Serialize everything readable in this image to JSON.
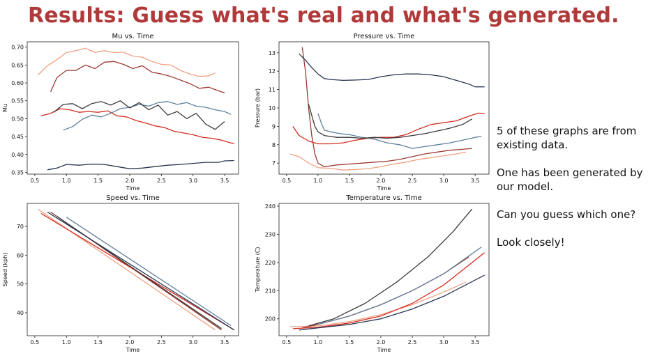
{
  "title": "Results: Guess what's real and what's generated.",
  "side_text": [
    "5 of these graphs are from existing data.",
    "One has been generated by our model.",
    "Can you guess which one?",
    "Look closely!"
  ],
  "series_colors": [
    "#f0a080",
    "#9b3a32",
    "#d42a1e",
    "#5f7f9a",
    "#3a3a3a",
    "#2a3550"
  ],
  "chart_data": [
    {
      "type": "line",
      "title": "Mu vs. Time",
      "xlabel": "Time",
      "ylabel": "Mu",
      "xlim": [
        0.38,
        3.72
      ],
      "ylim": [
        0.345,
        0.715
      ],
      "xticks": [
        0.5,
        1.0,
        1.5,
        2.0,
        2.5,
        3.0,
        3.5
      ],
      "yticks": [
        0.35,
        0.4,
        0.45,
        0.5,
        0.55,
        0.6,
        0.65,
        0.7
      ],
      "tick_format": 2,
      "series": [
        {
          "color": "#f0a080",
          "x": [
            0.55,
            0.7,
            0.85,
            1.0,
            1.15,
            1.3,
            1.45,
            1.6,
            1.75,
            1.9,
            2.05,
            2.2,
            2.35,
            2.5,
            2.65,
            2.8,
            2.95,
            3.1,
            3.25,
            3.35
          ],
          "y": [
            0.622,
            0.648,
            0.665,
            0.685,
            0.69,
            0.697,
            0.685,
            0.69,
            0.685,
            0.686,
            0.675,
            0.672,
            0.66,
            0.652,
            0.65,
            0.635,
            0.625,
            0.618,
            0.62,
            0.628
          ]
        },
        {
          "color": "#9b3a32",
          "x": [
            0.75,
            0.85,
            1.0,
            1.15,
            1.3,
            1.45,
            1.6,
            1.75,
            1.9,
            2.05,
            2.2,
            2.35,
            2.5,
            2.65,
            2.8,
            2.95,
            3.1,
            3.25,
            3.4,
            3.5
          ],
          "y": [
            0.575,
            0.615,
            0.635,
            0.635,
            0.65,
            0.64,
            0.658,
            0.66,
            0.652,
            0.64,
            0.648,
            0.63,
            0.625,
            0.618,
            0.608,
            0.598,
            0.585,
            0.588,
            0.578,
            0.572
          ]
        },
        {
          "color": "#d42a1e",
          "x": [
            0.6,
            0.75,
            0.9,
            1.05,
            1.2,
            1.35,
            1.5,
            1.65,
            1.8,
            1.95,
            2.1,
            2.25,
            2.4,
            2.55,
            2.7,
            2.85,
            3.0,
            3.15,
            3.3,
            3.45,
            3.6,
            3.65
          ],
          "y": [
            0.508,
            0.515,
            0.528,
            0.525,
            0.518,
            0.52,
            0.518,
            0.522,
            0.508,
            0.505,
            0.495,
            0.488,
            0.48,
            0.475,
            0.465,
            0.46,
            0.455,
            0.448,
            0.445,
            0.44,
            0.432,
            0.43
          ]
        },
        {
          "color": "#5f7f9a",
          "x": [
            0.95,
            1.1,
            1.25,
            1.4,
            1.55,
            1.7,
            1.85,
            2.0,
            2.15,
            2.3,
            2.45,
            2.6,
            2.75,
            2.9,
            3.05,
            3.2,
            3.35,
            3.5,
            3.6
          ],
          "y": [
            0.468,
            0.478,
            0.498,
            0.51,
            0.505,
            0.515,
            0.528,
            0.532,
            0.54,
            0.535,
            0.545,
            0.548,
            0.54,
            0.545,
            0.535,
            0.532,
            0.525,
            0.52,
            0.512
          ]
        },
        {
          "color": "#3a3a3a",
          "x": [
            0.8,
            0.95,
            1.1,
            1.25,
            1.4,
            1.55,
            1.7,
            1.85,
            2.0,
            2.15,
            2.3,
            2.45,
            2.6,
            2.75,
            2.9,
            3.05,
            3.2,
            3.35,
            3.5
          ],
          "y": [
            0.518,
            0.54,
            0.542,
            0.528,
            0.542,
            0.548,
            0.538,
            0.55,
            0.53,
            0.545,
            0.525,
            0.538,
            0.51,
            0.52,
            0.5,
            0.515,
            0.485,
            0.47,
            0.492
          ]
        },
        {
          "color": "#2a3550",
          "x": [
            0.7,
            0.85,
            1.0,
            1.2,
            1.4,
            1.6,
            1.8,
            2.0,
            2.2,
            2.4,
            2.6,
            2.8,
            3.0,
            3.2,
            3.4,
            3.5,
            3.65
          ],
          "y": [
            0.357,
            0.362,
            0.372,
            0.37,
            0.373,
            0.372,
            0.366,
            0.36,
            0.362,
            0.366,
            0.37,
            0.372,
            0.375,
            0.378,
            0.378,
            0.382,
            0.383
          ]
        }
      ]
    },
    {
      "type": "line",
      "title": "Pressure vs. Time",
      "xlabel": "Time",
      "ylabel": "Pressure (bar)",
      "xlim": [
        0.38,
        3.72
      ],
      "ylim": [
        6.4,
        13.6
      ],
      "xticks": [
        0.5,
        1.0,
        1.5,
        2.0,
        2.5,
        3.0,
        3.5
      ],
      "yticks": [
        7,
        8,
        9,
        10,
        11,
        12,
        13
      ],
      "tick_format": 0,
      "series": [
        {
          "color": "#f0a080",
          "x": [
            0.55,
            0.7,
            0.85,
            1.0,
            1.2,
            1.4,
            1.6,
            1.8,
            2.0,
            2.2,
            2.4,
            2.6,
            2.8,
            3.0,
            3.2,
            3.35
          ],
          "y": [
            7.5,
            7.35,
            7.0,
            6.75,
            6.72,
            6.62,
            6.65,
            6.7,
            6.8,
            6.95,
            7.05,
            7.2,
            7.3,
            7.4,
            7.5,
            7.6
          ]
        },
        {
          "color": "#9b3a32",
          "x": [
            0.75,
            0.8,
            0.85,
            0.9,
            0.95,
            1.0,
            1.1,
            1.3,
            1.5,
            1.7,
            1.9,
            2.1,
            2.3,
            2.5,
            2.7,
            2.9,
            3.1,
            3.3,
            3.45
          ],
          "y": [
            13.3,
            12.0,
            10.0,
            8.5,
            7.5,
            7.0,
            6.8,
            6.9,
            6.95,
            7.0,
            7.05,
            7.1,
            7.2,
            7.35,
            7.5,
            7.6,
            7.7,
            7.75,
            7.8
          ]
        },
        {
          "color": "#d42a1e",
          "x": [
            0.6,
            0.7,
            0.85,
            1.0,
            1.2,
            1.4,
            1.6,
            1.8,
            2.0,
            2.2,
            2.4,
            2.6,
            2.8,
            3.0,
            3.2,
            3.4,
            3.55,
            3.65
          ],
          "y": [
            9.0,
            8.5,
            8.2,
            8.05,
            8.05,
            8.1,
            8.25,
            8.35,
            8.4,
            8.4,
            8.55,
            8.85,
            9.1,
            9.2,
            9.3,
            9.55,
            9.72,
            9.7
          ]
        },
        {
          "color": "#5f7f9a",
          "x": [
            1.0,
            1.05,
            1.1,
            1.2,
            1.35,
            1.5,
            1.7,
            1.9,
            2.1,
            2.3,
            2.5,
            2.7,
            2.9,
            3.1,
            3.3,
            3.5,
            3.6
          ],
          "y": [
            9.7,
            9.2,
            8.8,
            8.7,
            8.6,
            8.55,
            8.4,
            8.3,
            8.1,
            8.0,
            7.8,
            7.9,
            8.0,
            8.1,
            8.25,
            8.4,
            8.45
          ]
        },
        {
          "color": "#3a3a3a",
          "x": [
            0.85,
            0.9,
            0.95,
            1.0,
            1.1,
            1.3,
            1.5,
            1.7,
            1.9,
            2.1,
            2.3,
            2.5,
            2.7,
            2.9,
            3.1,
            3.3,
            3.45
          ],
          "y": [
            10.2,
            9.6,
            9.0,
            8.7,
            8.5,
            8.4,
            8.4,
            8.35,
            8.4,
            8.35,
            8.4,
            8.5,
            8.6,
            8.75,
            8.9,
            9.1,
            9.4
          ]
        },
        {
          "color": "#2a3550",
          "x": [
            0.7,
            0.8,
            0.9,
            1.0,
            1.1,
            1.2,
            1.4,
            1.6,
            1.8,
            2.0,
            2.2,
            2.4,
            2.6,
            2.8,
            3.0,
            3.2,
            3.4,
            3.5,
            3.65
          ],
          "y": [
            12.95,
            12.6,
            12.2,
            11.85,
            11.6,
            11.55,
            11.5,
            11.52,
            11.55,
            11.7,
            11.8,
            11.85,
            11.85,
            11.8,
            11.7,
            11.5,
            11.3,
            11.15,
            11.15
          ]
        }
      ]
    },
    {
      "type": "line",
      "title": "Speed vs. Time",
      "xlabel": "Time",
      "ylabel": "Speed (kph)",
      "xlim": [
        0.38,
        3.72
      ],
      "ylim": [
        32,
        78
      ],
      "xticks": [
        0.5,
        1.0,
        1.5,
        2.0,
        2.5,
        3.0,
        3.5
      ],
      "yticks": [
        40,
        50,
        60,
        70
      ],
      "tick_format": 0,
      "series": [
        {
          "color": "#f0a080",
          "x": [
            0.55,
            3.35
          ],
          "y": [
            76.0,
            34.0
          ]
        },
        {
          "color": "#9b3a32",
          "x": [
            0.75,
            3.45
          ],
          "y": [
            75.0,
            34.0
          ]
        },
        {
          "color": "#d42a1e",
          "x": [
            0.6,
            3.65
          ],
          "y": [
            74.5,
            34.0
          ]
        },
        {
          "color": "#5f7f9a",
          "x": [
            1.0,
            3.6
          ],
          "y": [
            73.2,
            35.5
          ]
        },
        {
          "color": "#3a3a3a",
          "x": [
            0.85,
            3.45
          ],
          "y": [
            73.5,
            34.5
          ]
        },
        {
          "color": "#2a3550",
          "x": [
            0.7,
            3.65
          ],
          "y": [
            75.0,
            34.0
          ]
        }
      ]
    },
    {
      "type": "line",
      "title": "Temperature vs. Time",
      "xlabel": "Time",
      "ylabel": "Temperature (C)",
      "xlim": [
        0.38,
        3.72
      ],
      "ylim": [
        194,
        241
      ],
      "xticks": [
        0.5,
        1.0,
        1.5,
        2.0,
        2.5,
        3.0,
        3.5
      ],
      "yticks": [
        200,
        210,
        220,
        230,
        240
      ],
      "tick_format": 0,
      "series": [
        {
          "color": "#f0a080",
          "x": [
            0.55,
            1.0,
            1.5,
            2.0,
            2.5,
            3.0,
            3.35
          ],
          "y": [
            197.2,
            197.5,
            199.0,
            201.5,
            205.0,
            209.5,
            213.0
          ]
        },
        {
          "color": "#9b3a32",
          "x": [
            0.75,
            1.0,
            1.5,
            2.0,
            2.5,
            3.0,
            3.4
          ],
          "y": [
            196.8,
            198.0,
            201.0,
            205.0,
            210.0,
            216.0,
            222.0
          ]
        },
        {
          "color": "#d42a1e",
          "x": [
            0.6,
            1.0,
            1.5,
            2.0,
            2.5,
            3.0,
            3.65
          ],
          "y": [
            196.5,
            197.0,
            198.5,
            201.0,
            205.5,
            212.0,
            223.5
          ]
        },
        {
          "color": "#5f7f9a",
          "x": [
            1.0,
            1.5,
            2.0,
            2.5,
            3.0,
            3.6
          ],
          "y": [
            198.0,
            201.0,
            205.0,
            210.0,
            216.0,
            225.5
          ]
        },
        {
          "color": "#3a3a3a",
          "x": [
            0.85,
            1.25,
            1.75,
            2.25,
            2.75,
            3.15,
            3.45
          ],
          "y": [
            197.5,
            200.0,
            205.5,
            213.0,
            222.0,
            231.0,
            239.0
          ]
        },
        {
          "color": "#2a3550",
          "x": [
            0.7,
            1.0,
            1.5,
            2.0,
            2.5,
            3.0,
            3.65
          ],
          "y": [
            196.0,
            196.8,
            198.0,
            200.0,
            203.5,
            208.0,
            215.5
          ]
        }
      ]
    }
  ]
}
